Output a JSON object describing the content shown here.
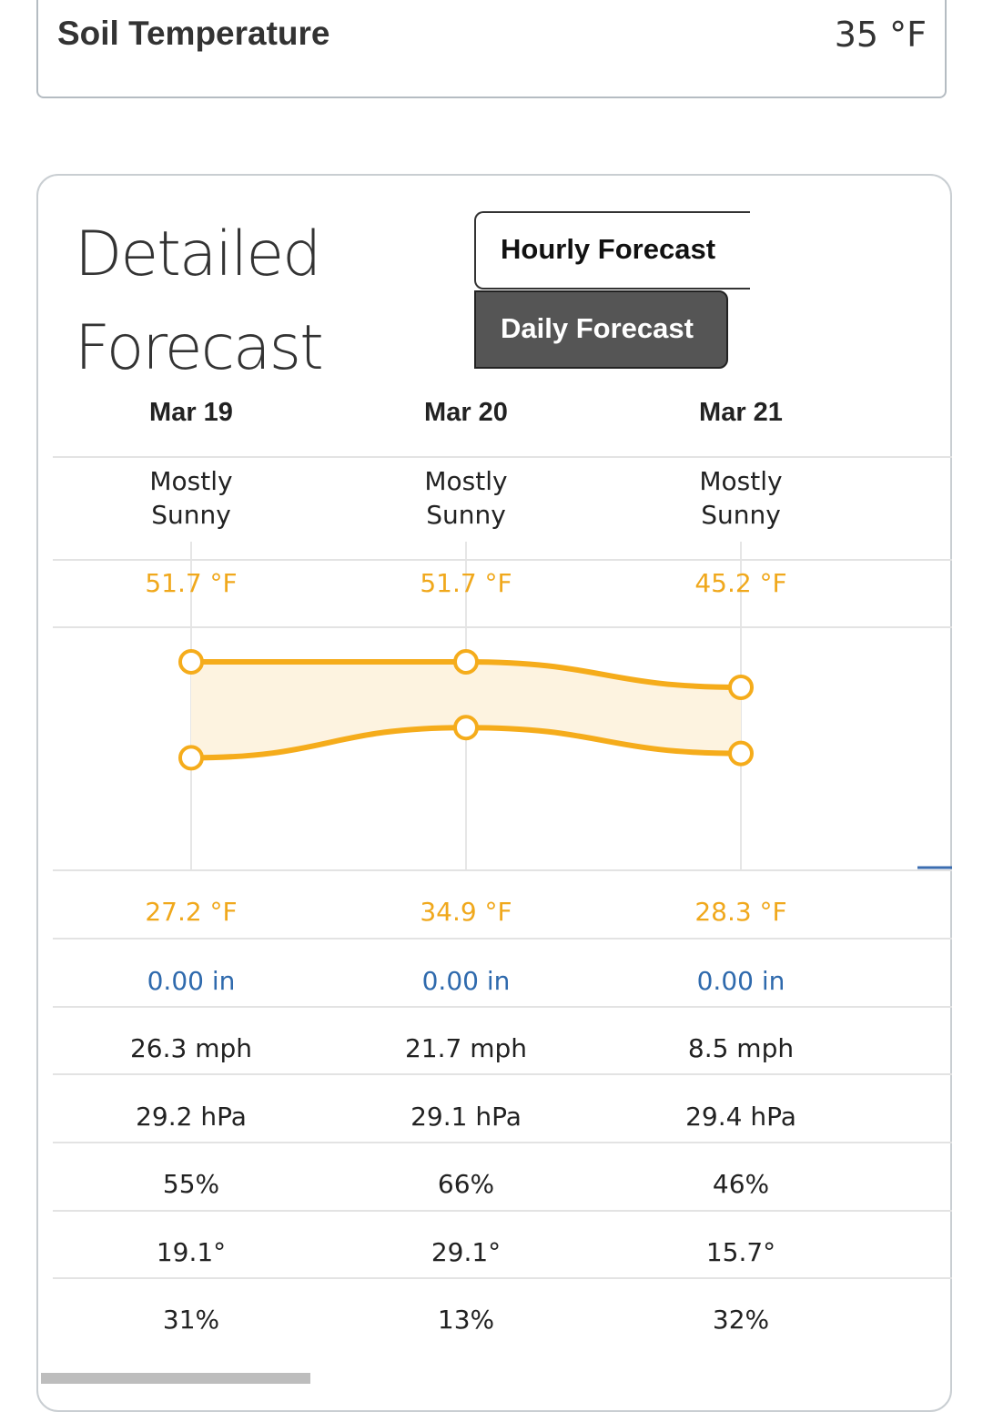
{
  "soil": {
    "label": "Soil Temperature",
    "value": "35 °F"
  },
  "forecast": {
    "title": "Detailed Forecast",
    "tabs": [
      "Hourly Forecast",
      "Daily Forecast"
    ],
    "days": [
      {
        "date": "Mar 19",
        "condition": "Mostly Sunny",
        "high": 51.7,
        "high_label": "51.7 °F",
        "low": 27.2,
        "low_label": "27.2 °F",
        "precipitation": "0.00 in",
        "wind": "26.3 mph",
        "pressure": "29.2 hPa",
        "humidity": "55%",
        "dew_point": "19.1°",
        "cloud_cover": "31%"
      },
      {
        "date": "Mar 20",
        "condition": "Mostly Sunny",
        "high": 51.7,
        "high_label": "51.7 °F",
        "low": 34.9,
        "low_label": "34.9 °F",
        "precipitation": "0.00 in",
        "wind": "21.7 mph",
        "pressure": "29.1 hPa",
        "humidity": "66%",
        "dew_point": "29.1°",
        "cloud_cover": "13%"
      },
      {
        "date": "Mar 21",
        "condition": "Mostly Sunny",
        "high": 45.2,
        "high_label": "45.2 °F",
        "low": 28.3,
        "low_label": "28.3 °F",
        "precipitation": "0.00 in",
        "wind": "8.5 mph",
        "pressure": "29.4 hPa",
        "humidity": "46%",
        "dew_point": "15.7°",
        "cloud_cover": "32%"
      }
    ]
  }
}
